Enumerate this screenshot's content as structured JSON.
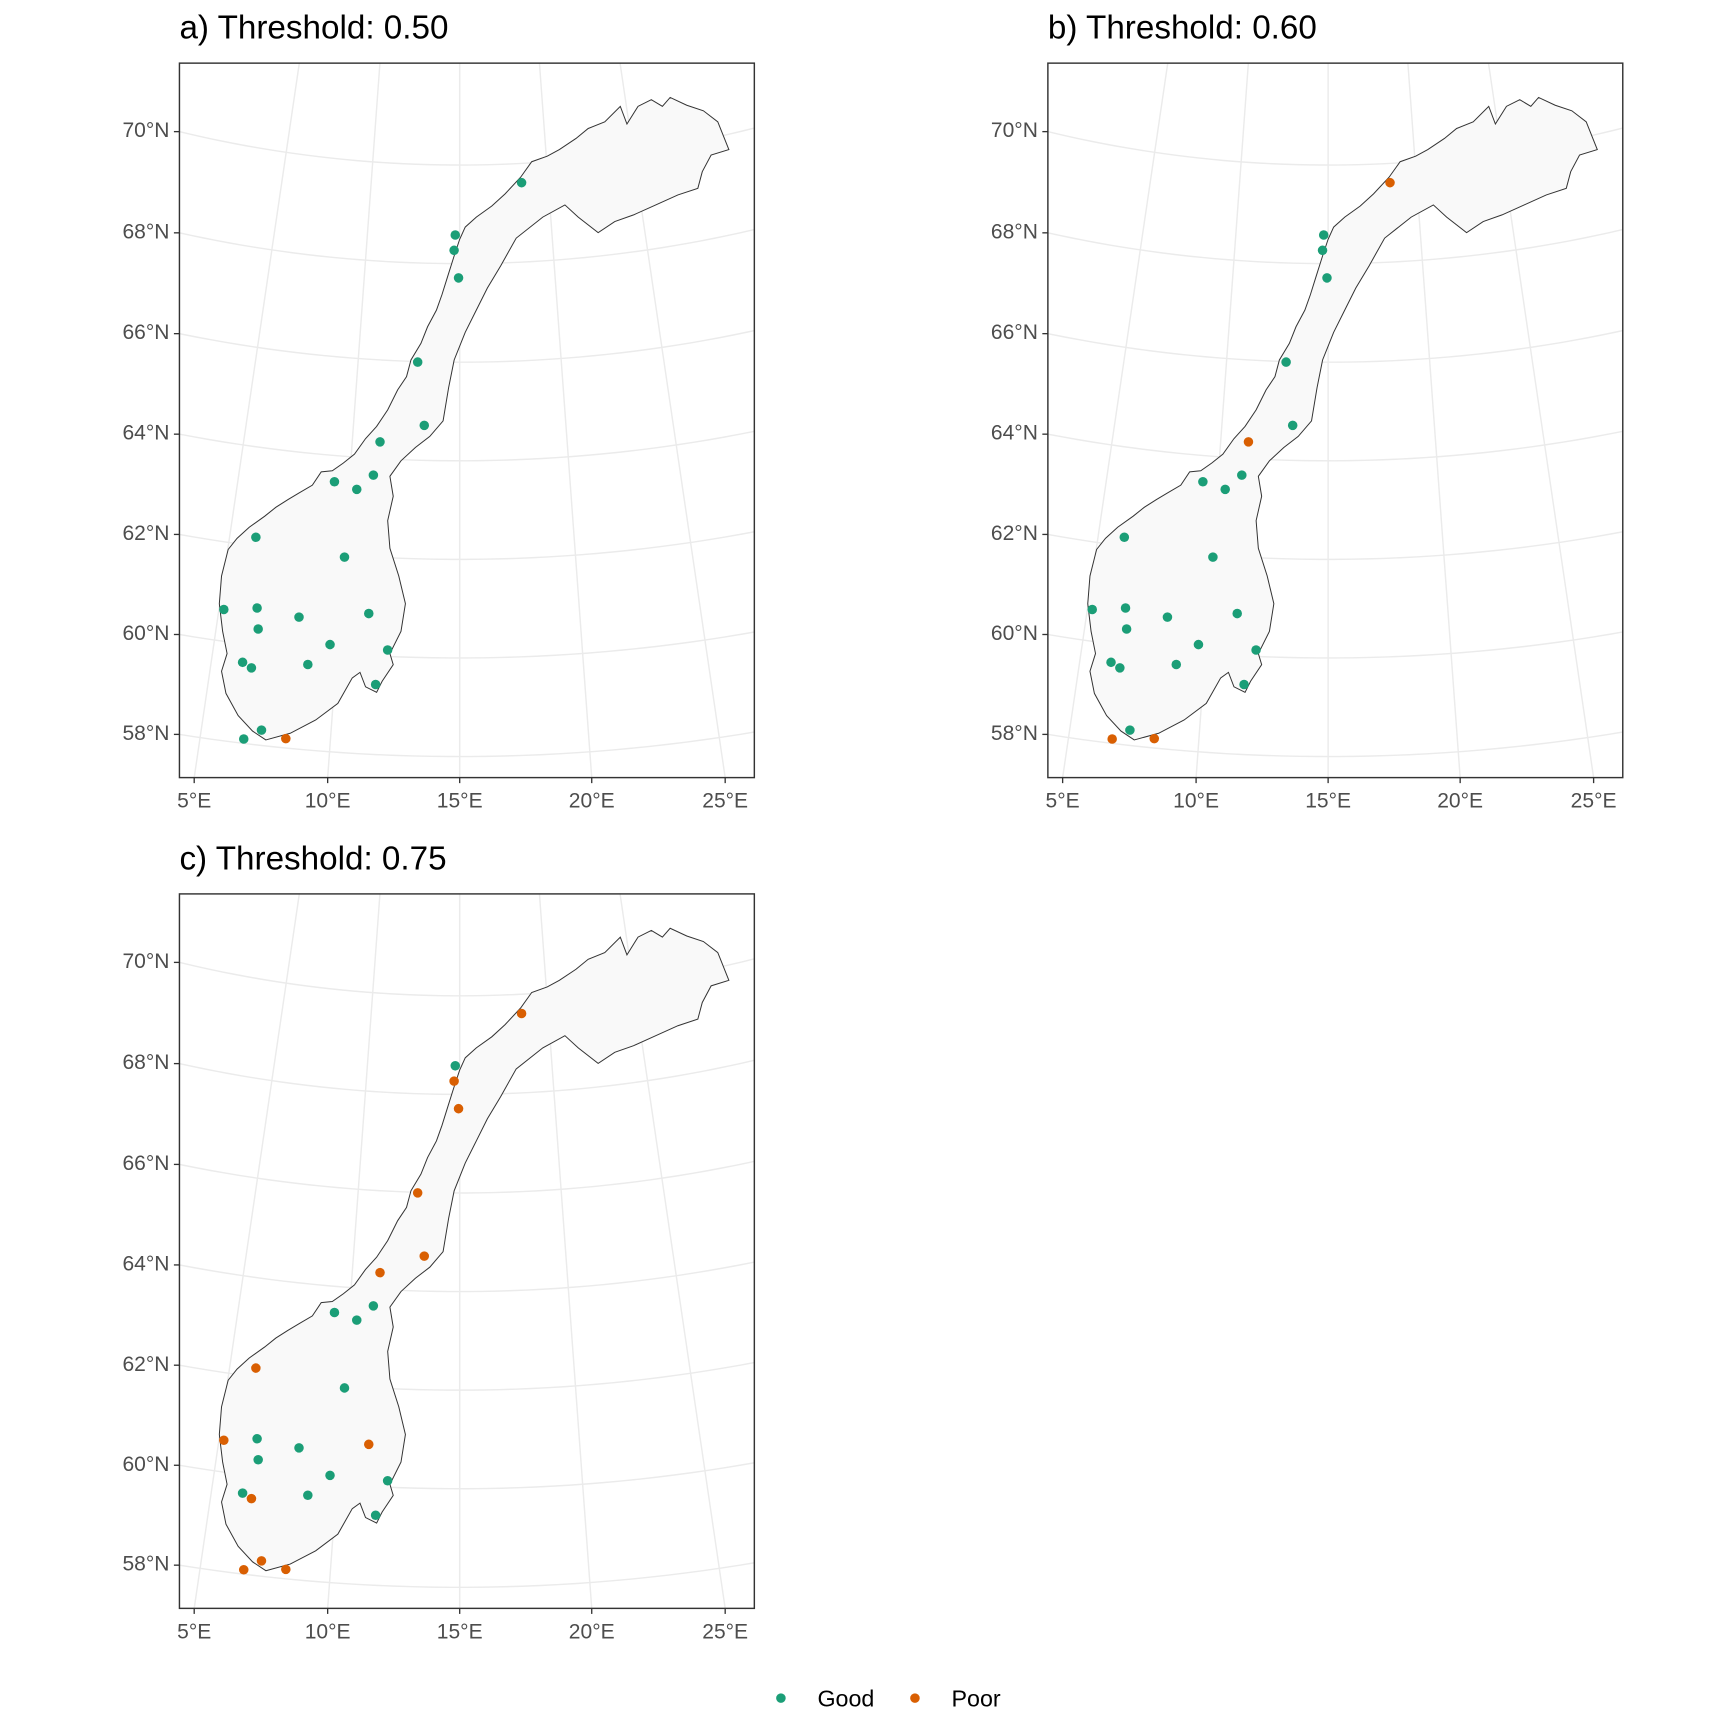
{
  "chart_data": [
    {
      "type": "scatter",
      "title": "a) Threshold: 0.50",
      "xticks": [
        {
          "value": 5,
          "label": "5°E"
        },
        {
          "value": 10,
          "label": "10°E"
        },
        {
          "value": 15,
          "label": "15°E"
        },
        {
          "value": 20,
          "label": "20°E"
        },
        {
          "value": 25,
          "label": "25°E"
        }
      ],
      "yticks": [
        {
          "value": 58,
          "label": "58°N"
        },
        {
          "value": 60,
          "label": "60°N"
        },
        {
          "value": 62,
          "label": "62°N"
        },
        {
          "value": 64,
          "label": "64°N"
        },
        {
          "value": 66,
          "label": "66°N"
        },
        {
          "value": 68,
          "label": "68°N"
        },
        {
          "value": 70,
          "label": "70°N"
        }
      ],
      "series": [
        {
          "name": "Good",
          "color": "#1b9e77",
          "x": [
            18.5,
            14.76,
            14.7,
            14.94,
            12.93,
            13.33,
            11.29,
            11.07,
            9.33,
            10.36,
            6.13,
            10.03,
            5.2,
            6.56,
            6.71,
            8.33,
            11.21,
            9.7,
            12.06,
            6.25,
            6.63,
            8.87,
            11.64,
            7.31,
            6.67
          ],
          "values": [
            69.61,
            68.58,
            68.27,
            67.71,
            65.99,
            64.71,
            64.34,
            63.66,
            63.47,
            63.35,
            62.18,
            61.96,
            60.64,
            60.76,
            60.34,
            60.67,
            60.85,
            60.17,
            60.13,
            59.63,
            59.54,
            59.73,
            59.42,
            58.31,
            58.09
          ]
        },
        {
          "name": "Poor",
          "color": "#d95f02",
          "x": [
            8.28
          ],
          "values": [
            58.19
          ]
        }
      ]
    },
    {
      "type": "scatter",
      "title": "b) Threshold: 0.60",
      "xticks": [
        {
          "value": 5,
          "label": "5°E"
        },
        {
          "value": 10,
          "label": "10°E"
        },
        {
          "value": 15,
          "label": "15°E"
        },
        {
          "value": 20,
          "label": "20°E"
        },
        {
          "value": 25,
          "label": "25°E"
        }
      ],
      "yticks": [
        {
          "value": 58,
          "label": "58°N"
        },
        {
          "value": 60,
          "label": "60°N"
        },
        {
          "value": 62,
          "label": "62°N"
        },
        {
          "value": 64,
          "label": "64°N"
        },
        {
          "value": 66,
          "label": "66°N"
        },
        {
          "value": 68,
          "label": "68°N"
        },
        {
          "value": 70,
          "label": "70°N"
        }
      ],
      "series": [
        {
          "name": "Good",
          "color": "#1b9e77",
          "x": [
            14.76,
            14.7,
            14.94,
            12.93,
            13.33,
            11.07,
            9.33,
            10.36,
            6.13,
            10.03,
            5.2,
            6.56,
            6.71,
            8.33,
            11.21,
            9.7,
            12.06,
            6.25,
            6.63,
            8.87,
            11.64,
            7.31
          ],
          "values": [
            68.58,
            68.27,
            67.71,
            65.99,
            64.71,
            63.66,
            63.47,
            63.35,
            62.18,
            61.96,
            60.64,
            60.76,
            60.34,
            60.67,
            60.85,
            60.17,
            60.13,
            59.63,
            59.54,
            59.73,
            59.42,
            58.31
          ]
        },
        {
          "name": "Poor",
          "color": "#d95f02",
          "x": [
            18.5,
            11.29,
            6.67,
            8.28
          ],
          "values": [
            69.61,
            64.34,
            58.09,
            58.19
          ]
        }
      ]
    },
    {
      "type": "scatter",
      "title": "c) Threshold: 0.75",
      "xticks": [
        {
          "value": 5,
          "label": "5°E"
        },
        {
          "value": 10,
          "label": "10°E"
        },
        {
          "value": 15,
          "label": "15°E"
        },
        {
          "value": 20,
          "label": "20°E"
        },
        {
          "value": 25,
          "label": "25°E"
        }
      ],
      "yticks": [
        {
          "value": 58,
          "label": "58°N"
        },
        {
          "value": 60,
          "label": "60°N"
        },
        {
          "value": 62,
          "label": "62°N"
        },
        {
          "value": 64,
          "label": "64°N"
        },
        {
          "value": 66,
          "label": "66°N"
        },
        {
          "value": 68,
          "label": "68°N"
        },
        {
          "value": 70,
          "label": "70°N"
        }
      ],
      "series": [
        {
          "name": "Good",
          "color": "#1b9e77",
          "x": [
            14.76,
            11.07,
            9.33,
            10.36,
            10.03,
            6.56,
            6.71,
            8.33,
            9.7,
            12.06,
            6.25,
            8.87,
            11.64
          ],
          "values": [
            68.58,
            63.66,
            63.47,
            63.35,
            61.96,
            60.76,
            60.34,
            60.67,
            60.17,
            60.13,
            59.63,
            59.73,
            59.42
          ]
        },
        {
          "name": "Poor",
          "color": "#d95f02",
          "x": [
            18.5,
            14.7,
            14.94,
            12.93,
            13.33,
            11.29,
            6.13,
            5.2,
            11.21,
            6.63,
            7.31,
            6.67,
            8.28
          ],
          "values": [
            69.61,
            68.27,
            67.71,
            65.99,
            64.71,
            64.34,
            62.18,
            60.64,
            60.85,
            59.54,
            58.31,
            58.09,
            58.19
          ]
        }
      ]
    }
  ]
}
